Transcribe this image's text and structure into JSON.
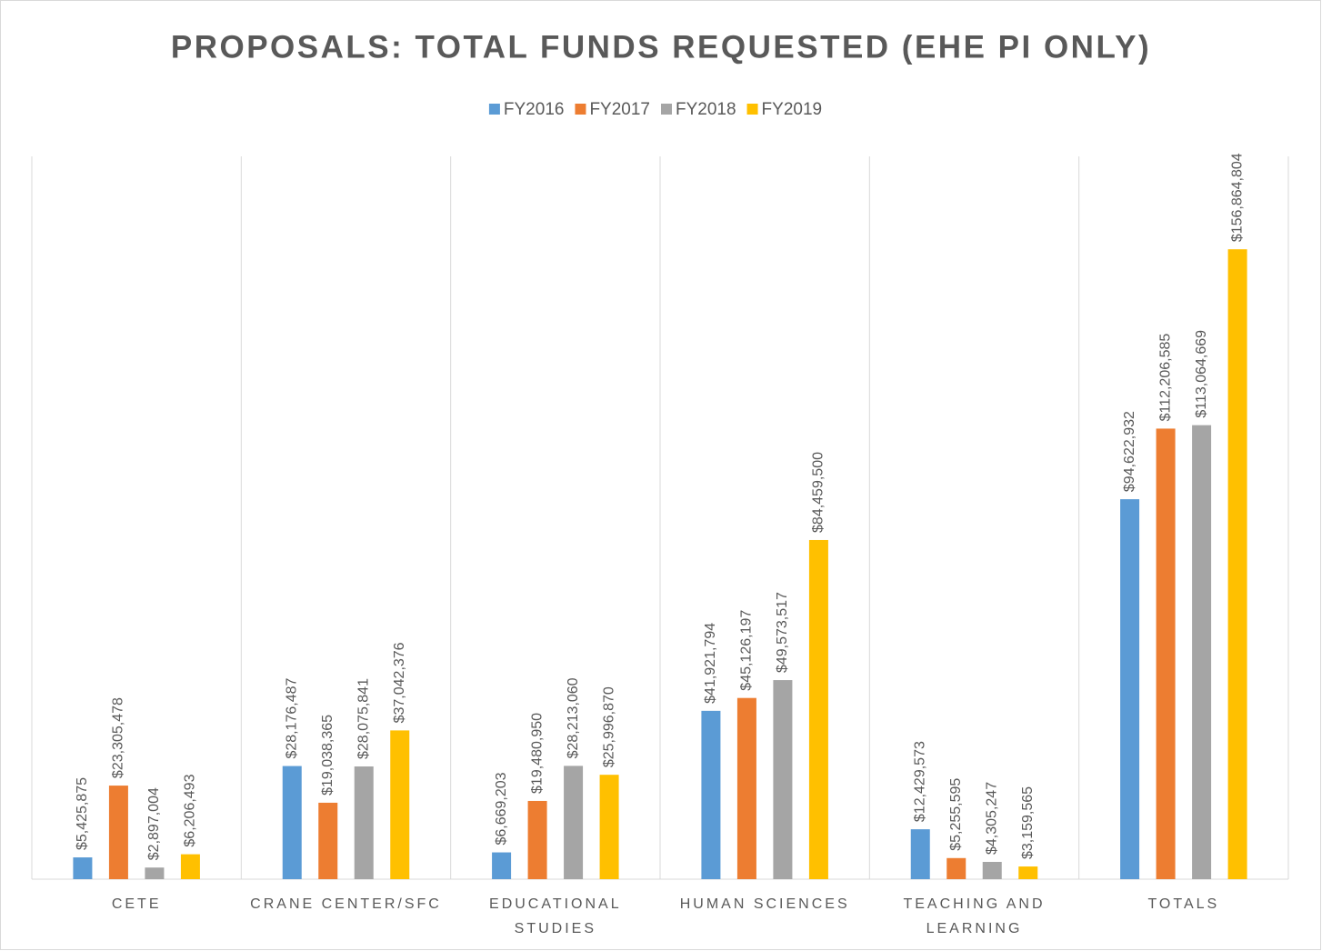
{
  "chart_data": {
    "type": "bar",
    "title": "PROPOSALS: TOTAL FUNDS REQUESTED (EHE PI ONLY)",
    "categories": [
      "CETE",
      "CRANE CENTER/SFC",
      "EDUCATIONAL STUDIES",
      "HUMAN SCIENCES",
      "TEACHING AND LEARNING",
      "TOTALS"
    ],
    "series": [
      {
        "name": "FY2016",
        "color": "#5b9bd5",
        "values": [
          5425875,
          28176487,
          6669203,
          41921794,
          12429573,
          94622932
        ],
        "value_labels": [
          "$5,425,875",
          "$28,176,487",
          "$6,669,203",
          "$41,921,794",
          "$12,429,573",
          "$94,622,932"
        ]
      },
      {
        "name": "FY2017",
        "color": "#ed7d31",
        "values": [
          23305478,
          19038365,
          19480950,
          45126197,
          5255595,
          112206585
        ],
        "value_labels": [
          "$23,305,478",
          "$19,038,365",
          "$19,480,950",
          "$45,126,197",
          "$5,255,595",
          "$112,206,585"
        ]
      },
      {
        "name": "FY2018",
        "color": "#a5a5a5",
        "values": [
          2897004,
          28075841,
          28213060,
          49573517,
          4305247,
          113064669
        ],
        "value_labels": [
          "$2,897,004",
          "$28,075,841",
          "$28,213,060",
          "$49,573,517",
          "$4,305,247",
          "$113,064,669"
        ]
      },
      {
        "name": "FY2019",
        "color": "#ffc000",
        "values": [
          6206493,
          37042376,
          25996870,
          84459500,
          3159565,
          156864804
        ],
        "value_labels": [
          "$6,206,493",
          "$37,042,376",
          "$25,996,870",
          "$84,459,500",
          "$3,159,565",
          "$156,864,804"
        ]
      }
    ],
    "ylim": [
      0,
      180000000
    ],
    "legend": "top"
  }
}
